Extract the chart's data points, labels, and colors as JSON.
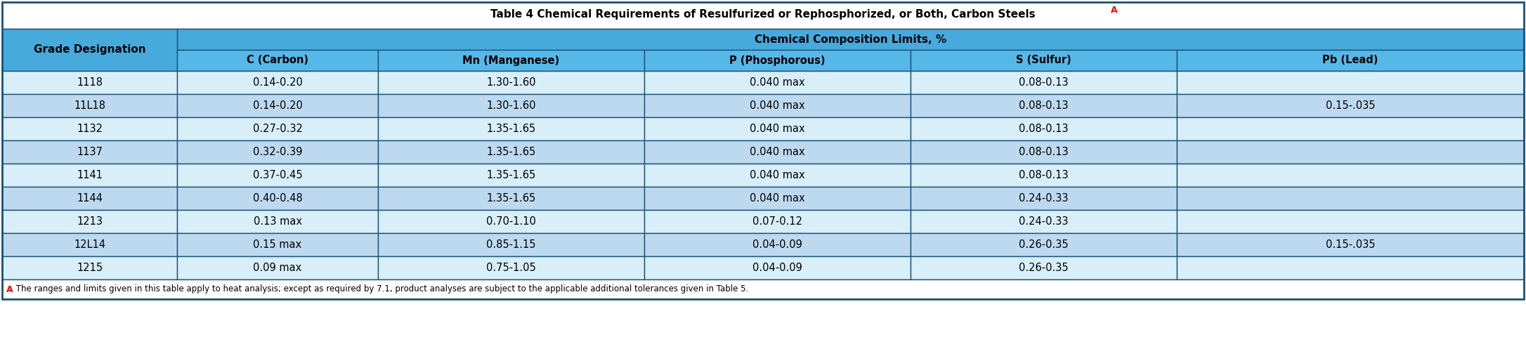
{
  "title": "Table 4 Chemical Requirements of Resulfurized or Rephosphorized, or Both, Carbon Steels",
  "title_superscript": "A",
  "col_header_merged": "Chemical Composition Limits, %",
  "col_headers": [
    "Grade Designation",
    "C (Carbon)",
    "Mn (Manganese)",
    "P (Phosphorous)",
    "S (Sulfur)",
    "Pb (Lead)"
  ],
  "rows": [
    [
      "1118",
      "0.14-0.20",
      "1.30-1.60",
      "0.040 max",
      "0.08-0.13",
      ""
    ],
    [
      "11L18",
      "0.14-0.20",
      "1.30-1.60",
      "0.040 max",
      "0.08-0.13",
      "0.15-.035"
    ],
    [
      "1132",
      "0.27-0.32",
      "1.35-1.65",
      "0.040 max",
      "0.08-0.13",
      ""
    ],
    [
      "1137",
      "0.32-0.39",
      "1.35-1.65",
      "0.040 max",
      "0.08-0.13",
      ""
    ],
    [
      "1141",
      "0.37-0.45",
      "1.35-1.65",
      "0.040 max",
      "0.08-0.13",
      ""
    ],
    [
      "1144",
      "0.40-0.48",
      "1.35-1.65",
      "0.040 max",
      "0.24-0.33",
      ""
    ],
    [
      "1213",
      "0.13 max",
      "0.70-1.10",
      "0.07-0.12",
      "0.24-0.33",
      ""
    ],
    [
      "12L14",
      "0.15 max",
      "0.85-1.15",
      "0.04-0.09",
      "0.26-0.35",
      "0.15-.035"
    ],
    [
      "1215",
      "0.09 max",
      "0.75-1.05",
      "0.04-0.09",
      "0.26-0.35",
      ""
    ]
  ],
  "footnote_letter": "A",
  "footnote_text": " The ranges and limits given in this table apply to heat analysis; except as required by 7.1, product analyses are subject to the applicable additional tolerances given in Table 5.",
  "color_header_blue": "#47AADC",
  "color_header_light": "#55B8E8",
  "color_row_light": "#BDD9EF",
  "color_row_lighter": "#D8EEF8",
  "color_border": "#1A5276",
  "color_bg": "#FFFFFF",
  "col_props": [
    0.115,
    0.132,
    0.175,
    0.175,
    0.175,
    0.228
  ]
}
